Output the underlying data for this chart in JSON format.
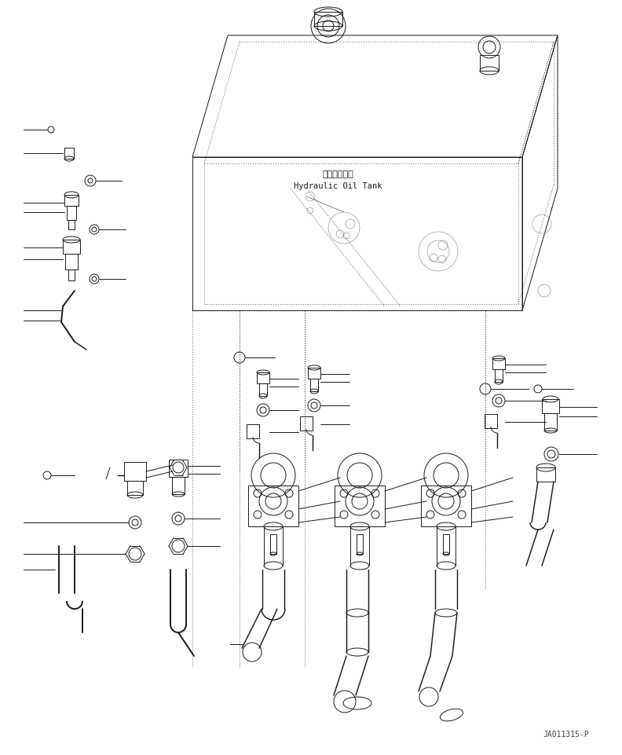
{
  "part_label_line1": "作動油タンク",
  "part_label_line2": "Hydraulic Oil Tank",
  "watermark": "JA011315-P",
  "bg_color": "#ffffff",
  "line_color": "#1a1a1a",
  "line_width": 0.7,
  "fig_w": 7.92,
  "fig_h": 9.61,
  "dpi": 100
}
